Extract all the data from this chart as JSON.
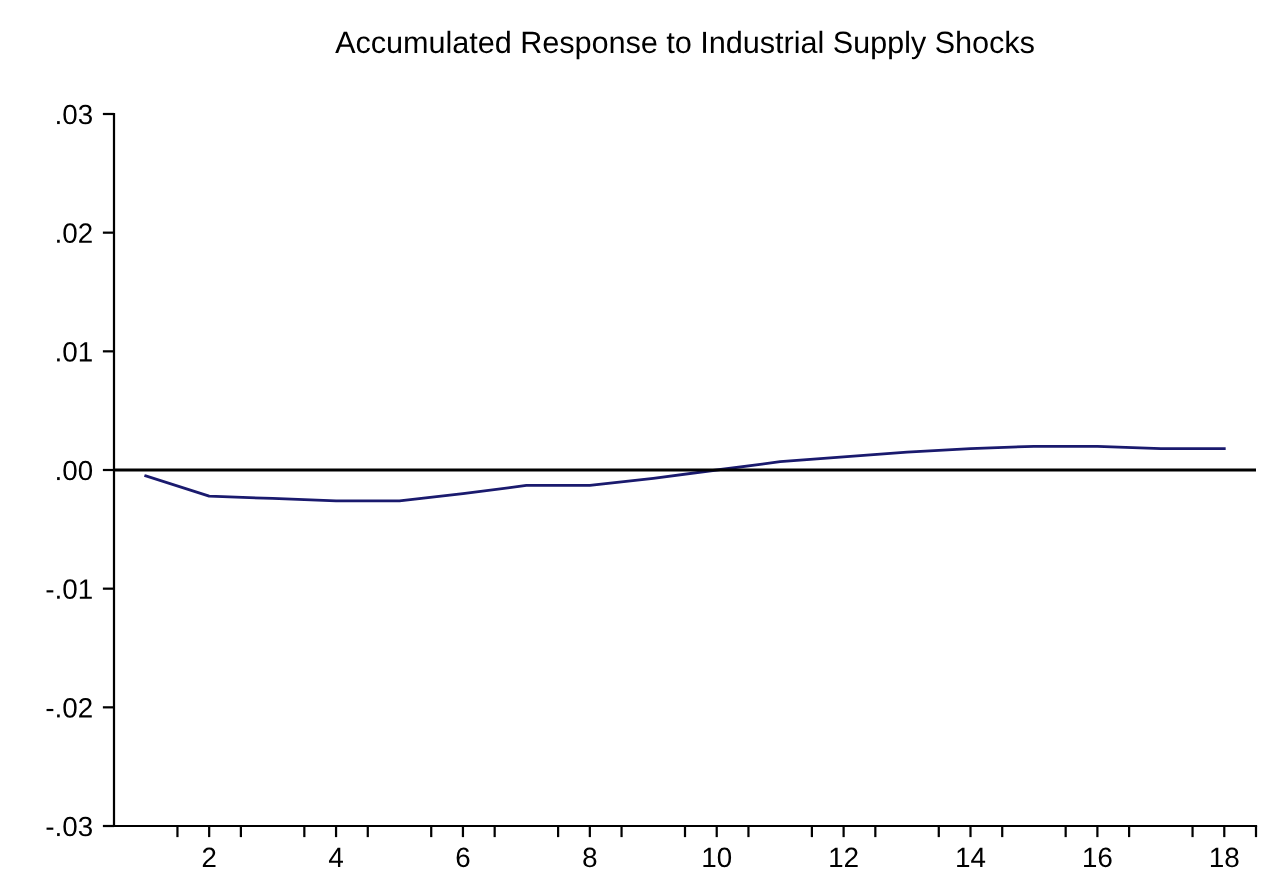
{
  "chart_data": {
    "type": "line",
    "title": "Accumulated Response to Industrial Supply Shocks",
    "x": [
      1,
      2,
      3,
      4,
      5,
      6,
      7,
      8,
      9,
      10,
      11,
      12,
      13,
      14,
      15,
      16,
      17,
      18
    ],
    "series": [
      {
        "color": "#1a1a6e",
        "values": [
          -0.0005,
          -0.0022,
          -0.0024,
          -0.0026,
          -0.0026,
          -0.002,
          -0.0013,
          -0.0013,
          -0.0007,
          0.0,
          0.0007,
          0.0011,
          0.0015,
          0.0018,
          0.002,
          0.002,
          0.0018,
          0.0018
        ]
      }
    ],
    "xlim": [
      0.5,
      18.5
    ],
    "xticks": [
      {
        "value": 1.5,
        "label": null
      },
      {
        "value": 2,
        "label": "2"
      },
      {
        "value": 2.5,
        "label": null
      },
      {
        "value": 3.5,
        "label": null
      },
      {
        "value": 4,
        "label": "4"
      },
      {
        "value": 4.5,
        "label": null
      },
      {
        "value": 5.5,
        "label": null
      },
      {
        "value": 6,
        "label": "6"
      },
      {
        "value": 6.5,
        "label": null
      },
      {
        "value": 7.5,
        "label": null
      },
      {
        "value": 8,
        "label": "8"
      },
      {
        "value": 8.5,
        "label": null
      },
      {
        "value": 9.5,
        "label": null
      },
      {
        "value": 10,
        "label": "10"
      },
      {
        "value": 10.5,
        "label": null
      },
      {
        "value": 11.5,
        "label": null
      },
      {
        "value": 12,
        "label": "12"
      },
      {
        "value": 12.5,
        "label": null
      },
      {
        "value": 13.5,
        "label": null
      },
      {
        "value": 14,
        "label": "14"
      },
      {
        "value": 14.5,
        "label": null
      },
      {
        "value": 15.5,
        "label": null
      },
      {
        "value": 16,
        "label": "16"
      },
      {
        "value": 16.5,
        "label": null
      },
      {
        "value": 17.5,
        "label": null
      },
      {
        "value": 18,
        "label": "18"
      },
      {
        "value": 18.5,
        "label": null
      }
    ],
    "ylim": [
      -0.03,
      0.03
    ],
    "yticks": [
      {
        "value": -0.03,
        "label": "-.03"
      },
      {
        "value": -0.02,
        "label": "-.02"
      },
      {
        "value": -0.01,
        "label": "-.01"
      },
      {
        "value": 0.0,
        "label": ".00"
      },
      {
        "value": 0.01,
        "label": ".01"
      },
      {
        "value": 0.02,
        "label": ".02"
      },
      {
        "value": 0.03,
        "label": ".03"
      }
    ],
    "ref_lines": [
      {
        "axis": "y",
        "value": 0,
        "color": "#000000"
      }
    ],
    "grid": false,
    "legend": false
  }
}
